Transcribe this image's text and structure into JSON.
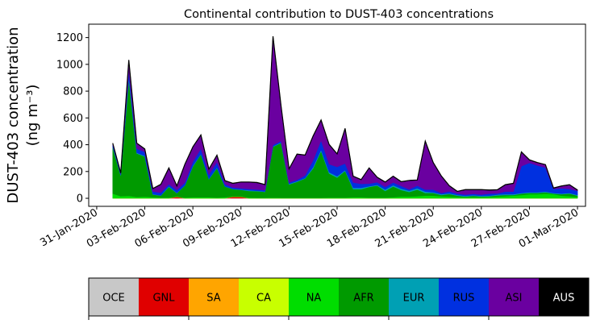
{
  "chart_data": {
    "type": "area",
    "stacked": true,
    "title": "Continental contribution to DUST-403 concentrations",
    "ylabel_line1": "DUST-403 concentration",
    "ylabel_line2": "(ng m⁻³)",
    "xlabel": "",
    "ylim": [
      -60,
      1300
    ],
    "yticks": [
      0,
      200,
      400,
      600,
      800,
      1000,
      1200
    ],
    "xlim": [
      "2020-01-30T12:00",
      "2020-03-01T12:00"
    ],
    "xticks": [
      "2020-01-31",
      "2020-02-03",
      "2020-02-06",
      "2020-02-09",
      "2020-02-12",
      "2020-02-15",
      "2020-02-18",
      "2020-02-21",
      "2020-02-24",
      "2020-02-27",
      "2020-03-01"
    ],
    "xtick_labels": [
      "31-Jan-2020",
      "03-Feb-2020",
      "06-Feb-2020",
      "09-Feb-2020",
      "12-Feb-2020",
      "15-Feb-2020",
      "18-Feb-2020",
      "21-Feb-2020",
      "24-Feb-2020",
      "27-Feb-2020",
      "01-Mar-2020"
    ],
    "x": [
      "2020-02-01T00:00",
      "2020-02-01T12:00",
      "2020-02-02T00:00",
      "2020-02-02T12:00",
      "2020-02-03T00:00",
      "2020-02-03T12:00",
      "2020-02-04T00:00",
      "2020-02-04T12:00",
      "2020-02-05T00:00",
      "2020-02-05T12:00",
      "2020-02-06T00:00",
      "2020-02-06T12:00",
      "2020-02-07T00:00",
      "2020-02-07T12:00",
      "2020-02-08T00:00",
      "2020-02-08T12:00",
      "2020-02-09T00:00",
      "2020-02-09T12:00",
      "2020-02-10T00:00",
      "2020-02-10T12:00",
      "2020-02-11T00:00",
      "2020-02-11T12:00",
      "2020-02-12T00:00",
      "2020-02-12T12:00",
      "2020-02-13T00:00",
      "2020-02-13T12:00",
      "2020-02-14T00:00",
      "2020-02-14T12:00",
      "2020-02-15T00:00",
      "2020-02-15T12:00",
      "2020-02-16T00:00",
      "2020-02-16T12:00",
      "2020-02-17T00:00",
      "2020-02-17T12:00",
      "2020-02-18T00:00",
      "2020-02-18T12:00",
      "2020-02-19T00:00",
      "2020-02-19T12:00",
      "2020-02-20T00:00",
      "2020-02-20T12:00",
      "2020-02-21T00:00",
      "2020-02-21T12:00",
      "2020-02-22T00:00",
      "2020-02-22T12:00",
      "2020-02-23T00:00",
      "2020-02-23T12:00",
      "2020-02-24T00:00",
      "2020-02-24T12:00",
      "2020-02-25T00:00",
      "2020-02-25T12:00",
      "2020-02-26T00:00",
      "2020-02-26T12:00",
      "2020-02-27T00:00",
      "2020-02-27T12:00",
      "2020-02-28T00:00",
      "2020-02-28T12:00",
      "2020-02-29T00:00",
      "2020-02-29T12:00",
      "2020-03-01T00:00"
    ],
    "series": [
      {
        "name": "OCE",
        "color": "#c8c8c8",
        "values": [
          0,
          0,
          0,
          0,
          0,
          0,
          0,
          0,
          0,
          0,
          0,
          0,
          0,
          0,
          0,
          0,
          0,
          0,
          0,
          0,
          0,
          0,
          0,
          0,
          0,
          0,
          0,
          0,
          0,
          0,
          0,
          0,
          0,
          0,
          0,
          0,
          0,
          0,
          0,
          0,
          0,
          0,
          0,
          0,
          0,
          0,
          0,
          0,
          0,
          0,
          0,
          0,
          0,
          0,
          0,
          0,
          0,
          0,
          0
        ]
      },
      {
        "name": "GNL",
        "color": "#e00000",
        "values": [
          0,
          0,
          0,
          0,
          0,
          0,
          0,
          0,
          10,
          0,
          0,
          0,
          0,
          0,
          0,
          10,
          10,
          0,
          0,
          0,
          0,
          0,
          0,
          0,
          0,
          0,
          0,
          0,
          0,
          0,
          0,
          0,
          0,
          0,
          0,
          0,
          0,
          0,
          0,
          0,
          0,
          0,
          0,
          0,
          0,
          0,
          0,
          0,
          0,
          0,
          0,
          0,
          0,
          0,
          0,
          0,
          0,
          0,
          0
        ]
      },
      {
        "name": "SA",
        "color": "#ffa500",
        "values": [
          0,
          0,
          0,
          0,
          0,
          0,
          0,
          0,
          3,
          0,
          0,
          0,
          0,
          0,
          0,
          3,
          3,
          0,
          0,
          0,
          0,
          0,
          0,
          0,
          0,
          0,
          0,
          0,
          0,
          0,
          0,
          0,
          0,
          0,
          0,
          0,
          0,
          0,
          0,
          0,
          0,
          0,
          0,
          0,
          0,
          0,
          0,
          0,
          0,
          0,
          0,
          0,
          0,
          0,
          0,
          0,
          0,
          0,
          0
        ]
      },
      {
        "name": "CA",
        "color": "#c8ff00",
        "values": [
          0,
          0,
          0,
          0,
          0,
          0,
          0,
          0,
          0,
          0,
          0,
          0,
          0,
          0,
          0,
          0,
          0,
          0,
          0,
          0,
          0,
          0,
          0,
          0,
          0,
          0,
          0,
          0,
          0,
          0,
          0,
          0,
          0,
          0,
          0,
          0,
          0,
          0,
          0,
          0,
          0,
          0,
          0,
          0,
          0,
          0,
          0,
          0,
          0,
          0,
          0,
          0,
          0,
          0,
          0,
          0,
          0,
          0,
          0
        ]
      },
      {
        "name": "NA",
        "color": "#00dd00",
        "values": [
          35,
          15,
          18,
          10,
          12,
          8,
          5,
          5,
          0,
          5,
          8,
          8,
          8,
          5,
          8,
          0,
          0,
          5,
          3,
          3,
          5,
          3,
          3,
          3,
          3,
          3,
          3,
          5,
          5,
          5,
          8,
          8,
          5,
          5,
          5,
          8,
          12,
          12,
          15,
          20,
          20,
          15,
          12,
          10,
          8,
          8,
          8,
          10,
          12,
          15,
          20,
          25,
          30,
          30,
          35,
          30,
          20,
          15,
          10
        ]
      },
      {
        "name": "AFR",
        "color": "#009a00",
        "values": [
          345,
          155,
          870,
          325,
          300,
          20,
          15,
          80,
          25,
          90,
          230,
          320,
          135,
          220,
          80,
          55,
          50,
          50,
          50,
          45,
          380,
          410,
          100,
          120,
          145,
          220,
          350,
          180,
          150,
          200,
          60,
          60,
          80,
          90,
          50,
          80,
          50,
          35,
          50,
          20,
          20,
          10,
          20,
          10,
          5,
          10,
          5,
          5,
          10,
          10,
          5,
          10,
          10,
          10,
          10,
          5,
          10,
          20,
          10
        ]
      },
      {
        "name": "EUR",
        "color": "#00a0b4",
        "values": [
          5,
          3,
          15,
          5,
          5,
          3,
          2,
          5,
          3,
          2,
          5,
          3,
          3,
          5,
          2,
          2,
          2,
          5,
          3,
          3,
          3,
          5,
          5,
          5,
          3,
          10,
          10,
          10,
          10,
          5,
          10,
          10,
          5,
          5,
          10,
          10,
          10,
          10,
          10,
          10,
          5,
          5,
          5,
          5,
          5,
          5,
          5,
          5,
          5,
          5,
          5,
          5,
          5,
          5,
          5,
          5,
          5,
          5,
          5
        ]
      },
      {
        "name": "RUS",
        "color": "#0030e0",
        "values": [
          15,
          10,
          50,
          30,
          30,
          20,
          20,
          15,
          20,
          20,
          30,
          40,
          30,
          40,
          15,
          10,
          10,
          10,
          10,
          10,
          10,
          10,
          10,
          10,
          20,
          50,
          70,
          60,
          70,
          50,
          40,
          30,
          20,
          20,
          20,
          20,
          20,
          10,
          20,
          15,
          20,
          10,
          15,
          10,
          10,
          10,
          10,
          15,
          10,
          20,
          20,
          200,
          220,
          200,
          180,
          30,
          40,
          30,
          30
        ]
      },
      {
        "name": "ASI",
        "color": "#6a00a0",
        "values": [
          10,
          5,
          77,
          40,
          20,
          20,
          60,
          120,
          30,
          135,
          110,
          100,
          40,
          50,
          25,
          30,
          45,
          50,
          50,
          40,
          810,
          260,
          100,
          190,
          150,
          180,
          150,
          145,
          95,
          260,
          45,
          30,
          115,
          35,
          35,
          45,
          30,
          65,
          40,
          360,
          200,
          125,
          40,
          15,
          35,
          30,
          35,
          25,
          25,
          50,
          60,
          105,
          20,
          20,
          20,
          5,
          15,
          30,
          5
        ]
      },
      {
        "name": "AUS",
        "color": "#000000",
        "values": [
          2,
          2,
          3,
          2,
          2,
          2,
          2,
          2,
          2,
          2,
          2,
          2,
          2,
          2,
          2,
          2,
          2,
          2,
          2,
          2,
          2,
          2,
          2,
          2,
          2,
          2,
          2,
          2,
          2,
          2,
          2,
          2,
          2,
          2,
          2,
          2,
          2,
          2,
          2,
          2,
          2,
          2,
          2,
          2,
          2,
          2,
          2,
          2,
          2,
          2,
          2,
          2,
          2,
          2,
          2,
          2,
          2,
          2,
          2
        ]
      }
    ],
    "legend": {
      "placement": "bottom",
      "items": [
        {
          "label": "OCE",
          "color": "#c8c8c8",
          "text_color": "#000000"
        },
        {
          "label": "GNL",
          "color": "#e00000",
          "text_color": "#000000"
        },
        {
          "label": "SA",
          "color": "#ffa500",
          "text_color": "#000000"
        },
        {
          "label": "CA",
          "color": "#c8ff00",
          "text_color": "#000000"
        },
        {
          "label": "NA",
          "color": "#00dd00",
          "text_color": "#000000"
        },
        {
          "label": "AFR",
          "color": "#009a00",
          "text_color": "#000000"
        },
        {
          "label": "EUR",
          "color": "#00a0b4",
          "text_color": "#000000"
        },
        {
          "label": "RUS",
          "color": "#0030e0",
          "text_color": "#000000"
        },
        {
          "label": "ASI",
          "color": "#6a00a0",
          "text_color": "#000000"
        },
        {
          "label": "AUS",
          "color": "#000000",
          "text_color": "#ffffff"
        }
      ]
    },
    "grid": false
  }
}
